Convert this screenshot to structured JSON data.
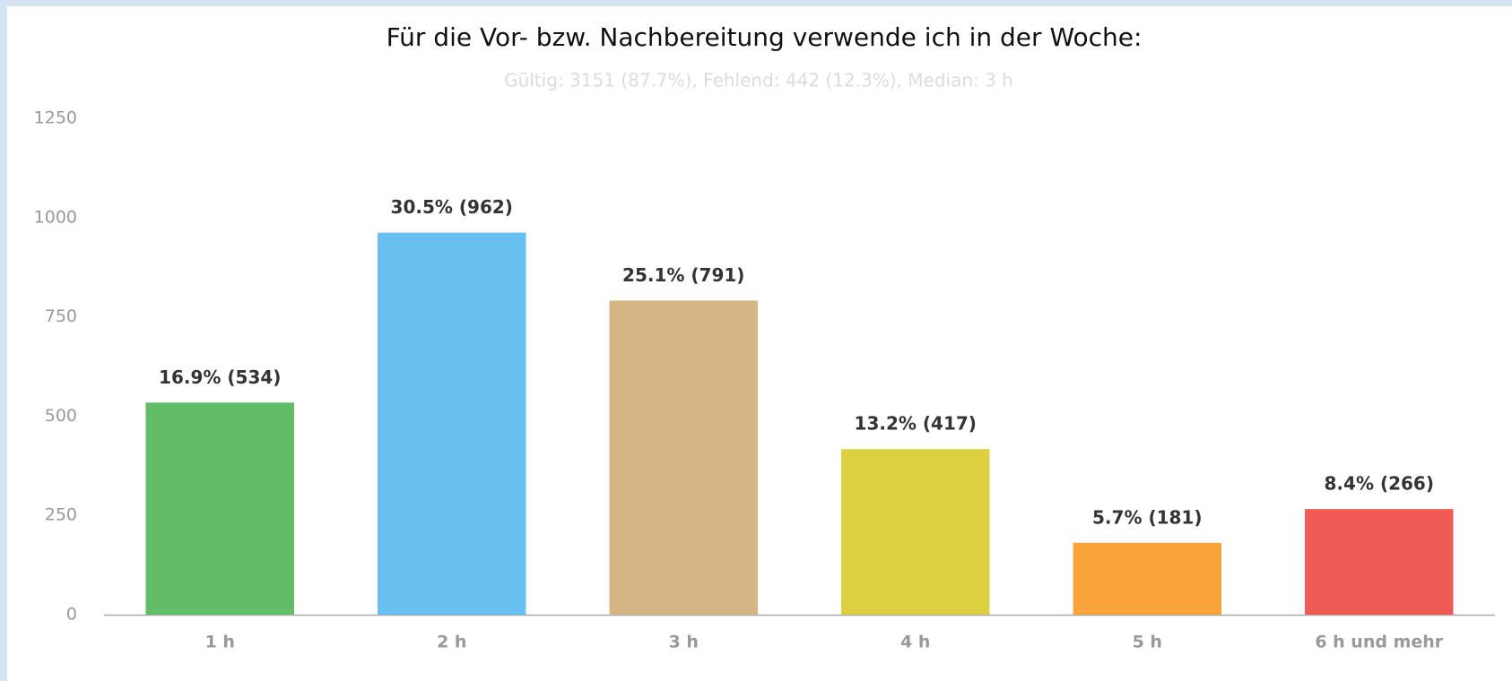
{
  "chart_data": {
    "type": "bar",
    "title": "Für die Vor- bzw. Nachbereitung verwende ich in der Woche:",
    "subtitle": "Gültig: 3151 (87.7%), Fehlend: 442 (12.3%), Median: 3 h",
    "categories": [
      "1 h",
      "2 h",
      "3 h",
      "4 h",
      "5 h",
      "6 h und mehr"
    ],
    "values": [
      534,
      962,
      791,
      417,
      181,
      266
    ],
    "value_labels": [
      "16.9% (534)",
      "30.5% (962)",
      "25.1% (791)",
      "13.2% (417)",
      "5.7% (181)",
      "8.4% (266)"
    ],
    "colors": [
      "#62bd69",
      "#67c0ef",
      "#d6b585",
      "#ddd040",
      "#f9a33b",
      "#f05a55"
    ],
    "ylim": [
      0,
      1250
    ],
    "yticks": [
      0,
      250,
      500,
      750,
      1000,
      1250
    ],
    "grid": false
  }
}
